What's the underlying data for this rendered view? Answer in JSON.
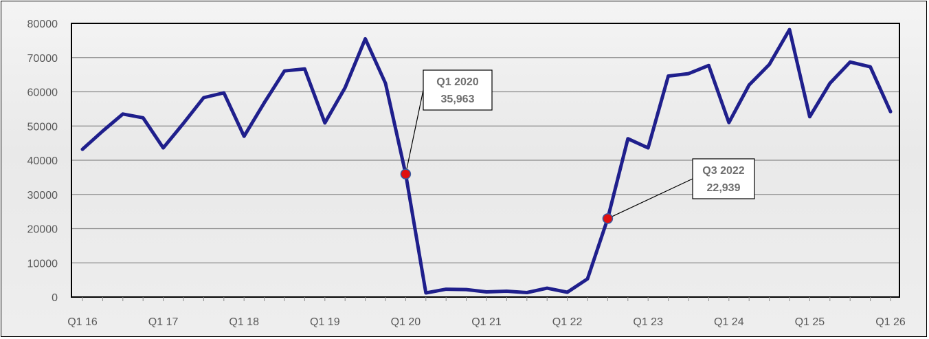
{
  "chart_data": {
    "type": "line",
    "title": "",
    "xlabel": "",
    "ylabel": "",
    "ylim": [
      0,
      80000
    ],
    "yticks": [
      0,
      10000,
      20000,
      30000,
      40000,
      50000,
      60000,
      70000,
      80000
    ],
    "xtick_labels": [
      "Q1 16",
      "Q1 17",
      "Q1 18",
      "Q1 19",
      "Q1 20",
      "Q1 21",
      "Q1 22",
      "Q1 23",
      "Q1 24",
      "Q1 25",
      "Q1 26"
    ],
    "grid": true,
    "legend": "none",
    "line_color": "#1f1f8c",
    "marker_color": "#e01010",
    "series": [
      {
        "values": [
          43200,
          48500,
          53500,
          52400,
          43600,
          50800,
          58300,
          59700,
          47000,
          56800,
          66100,
          66700,
          50900,
          61200,
          75500,
          62500,
          35963,
          1200,
          2300,
          2200,
          1500,
          1700,
          1300,
          2600,
          1400,
          5300,
          22939,
          46300,
          43600,
          64600,
          65300,
          67700,
          51000,
          62000,
          68000,
          78200,
          52700,
          62500,
          68700,
          67300,
          54200
        ]
      }
    ],
    "annotations": [
      {
        "point_index": 16,
        "period": "Q1 2020",
        "value": "35,963"
      },
      {
        "point_index": 26,
        "period": "Q3 2022",
        "value": "22,939"
      }
    ]
  }
}
